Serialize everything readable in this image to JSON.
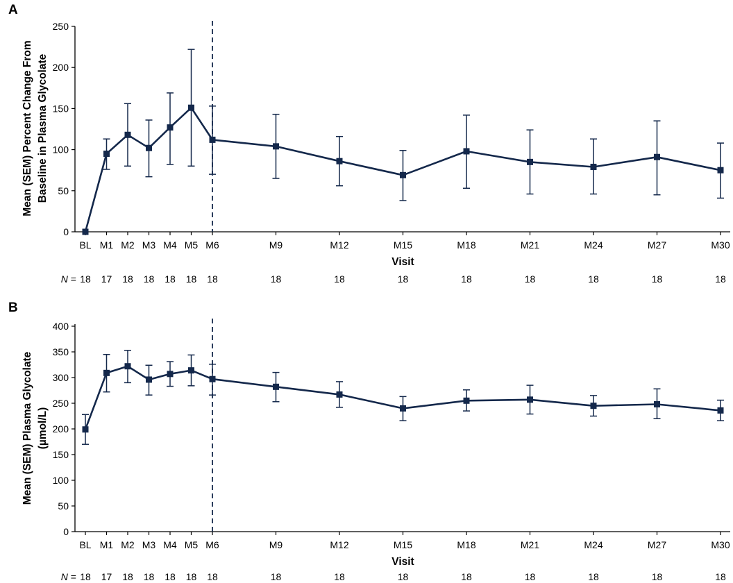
{
  "colors": {
    "series": "#14284b",
    "axis": "#000000"
  },
  "n_label_prefix": "N",
  "n_label_suffix": " = ",
  "chart_data": [
    {
      "panel": "A",
      "type": "line",
      "title": "",
      "xlabel": "Visit",
      "ylabel_lines": [
        "Mean (SEM) Percent Change From",
        "Baseline in Plasma Glycolate"
      ],
      "categories": [
        "BL",
        "M1",
        "M2",
        "M3",
        "M4",
        "M5",
        "M6",
        "M9",
        "M12",
        "M15",
        "M18",
        "M21",
        "M24",
        "M27",
        "M30"
      ],
      "x_months": [
        0,
        1,
        2,
        3,
        4,
        5,
        6,
        9,
        12,
        15,
        18,
        21,
        24,
        27,
        30
      ],
      "values": [
        0,
        95,
        118,
        102,
        127,
        151,
        112,
        104,
        86,
        69,
        98,
        85,
        79,
        91,
        75
      ],
      "error_upper": [
        0,
        113,
        156,
        136,
        169,
        222,
        153,
        143,
        116,
        99,
        142,
        124,
        113,
        135,
        108
      ],
      "error_lower": [
        0,
        76,
        80,
        67,
        82,
        80,
        70,
        65,
        56,
        38,
        53,
        46,
        46,
        45,
        41
      ],
      "yticks": [
        0,
        50,
        100,
        150,
        200,
        250
      ],
      "ylim": [
        0,
        250
      ],
      "reference_line_month": 6,
      "n": [
        "18",
        "17",
        "18",
        "18",
        "18",
        "18",
        "18",
        "18",
        "18",
        "18",
        "18",
        "18",
        "18",
        "18",
        "18"
      ]
    },
    {
      "panel": "B",
      "type": "line",
      "title": "",
      "xlabel": "Visit",
      "ylabel_lines": [
        "Mean (SEM) Plasma Glycolate",
        "(µmol/L)"
      ],
      "categories": [
        "BL",
        "M1",
        "M2",
        "M3",
        "M4",
        "M5",
        "M6",
        "M9",
        "M12",
        "M15",
        "M18",
        "M21",
        "M24",
        "M27",
        "M30"
      ],
      "x_months": [
        0,
        1,
        2,
        3,
        4,
        5,
        6,
        9,
        12,
        15,
        18,
        21,
        24,
        27,
        30
      ],
      "values": [
        199,
        309,
        322,
        296,
        307,
        314,
        297,
        282,
        267,
        240,
        255,
        257,
        245,
        248,
        236
      ],
      "error_upper": [
        228,
        345,
        353,
        324,
        331,
        344,
        326,
        310,
        292,
        263,
        276,
        285,
        265,
        278,
        256
      ],
      "error_lower": [
        170,
        272,
        290,
        266,
        283,
        284,
        266,
        253,
        242,
        216,
        235,
        229,
        225,
        220,
        216
      ],
      "yticks": [
        0,
        50,
        100,
        150,
        200,
        250,
        300,
        350,
        400
      ],
      "ylim": [
        0,
        400
      ],
      "reference_line_month": 6,
      "n": [
        "18",
        "17",
        "18",
        "18",
        "18",
        "18",
        "18",
        "18",
        "18",
        "18",
        "18",
        "18",
        "18",
        "18",
        "18"
      ]
    }
  ]
}
